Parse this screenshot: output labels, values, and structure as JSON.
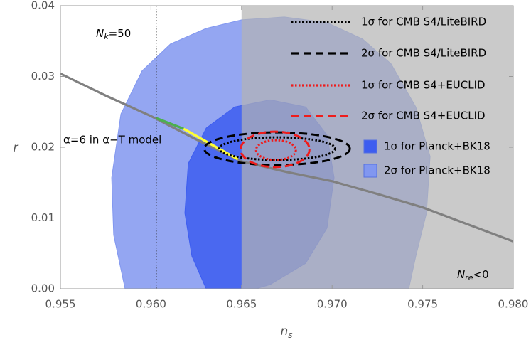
{
  "chart_data": {
    "type": "contour",
    "xlabel": "n",
    "xlabel_sub": "s",
    "ylabel": "r",
    "xlim": [
      0.955,
      0.98
    ],
    "ylim": [
      0,
      0.04
    ],
    "xticks": [
      0.955,
      {
        "value": 0.96,
        "label": "0.960"
      },
      0.965,
      {
        "value": 0.97,
        "label": "0.970"
      },
      0.975,
      {
        "value": 0.98,
        "label": "0.980"
      }
    ],
    "yticks": [
      {
        "value": 0,
        "label": "0.00"
      },
      0.01,
      0.02,
      0.03,
      0.04
    ],
    "shaded_region": {
      "xlim": [
        0.965,
        0.98
      ],
      "color": "#b4b4b4",
      "label": "N",
      "label_sub": "re",
      "label_tail": "<0"
    },
    "vline": {
      "x": 0.9603,
      "label": "N",
      "label_sub": "k",
      "label_tail": "=50"
    },
    "curve": {
      "color": "#808080",
      "x": [
        0.955,
        0.9575,
        0.96,
        0.9625,
        0.965,
        0.9675,
        0.97,
        0.9725,
        0.975,
        0.9775,
        0.98
      ],
      "y": [
        0.0304,
        0.0273,
        0.0244,
        0.0211,
        0.018,
        0.0165,
        0.0152,
        0.0134,
        0.0115,
        0.0091,
        0.0067
      ]
    },
    "segments": [
      {
        "color": "#4caf50",
        "x": [
          0.9603,
          0.9618
        ],
        "y": [
          0.0241,
          0.0226
        ]
      },
      {
        "color": "#ffff33",
        "x": [
          0.9618,
          0.9648
        ],
        "y": [
          0.0226,
          0.0183
        ]
      }
    ],
    "annotation": "α=6 in α−T model",
    "series": [
      {
        "name": "2σ for Planck+BK18",
        "color": "#8197f0",
        "style": "fill",
        "x": [
          0.95857,
          0.95794,
          0.95783,
          0.95834,
          0.95951,
          0.96108,
          0.96305,
          0.96501,
          0.96736,
          0.96972,
          0.97168,
          0.97325,
          0.97462,
          0.97541,
          0.97521,
          0.97462,
          0.97423
        ],
        "y": [
          0,
          0.0076,
          0.0157,
          0.0247,
          0.0308,
          0.0346,
          0.0368,
          0.038,
          0.0384,
          0.0376,
          0.0353,
          0.0318,
          0.0257,
          0.0187,
          0.0107,
          0.0046,
          0
        ]
      },
      {
        "name": "1σ for Planck+BK18",
        "color": "#3d5df0",
        "style": "fill",
        "x": [
          0.96305,
          0.96226,
          0.96187,
          0.96206,
          0.96305,
          0.96462,
          0.96658,
          0.96854,
          0.96972,
          0.97011,
          0.96972,
          0.96854,
          0.96658,
          0.96579
        ],
        "y": [
          0,
          0.0046,
          0.0107,
          0.0177,
          0.0227,
          0.0257,
          0.0267,
          0.0257,
          0.0217,
          0.0157,
          0.0086,
          0.0036,
          0.0006,
          0
        ]
      },
      {
        "name": "1σ for CMB S4/LiteBIRD",
        "color": "#000000",
        "style": "dotted",
        "center": [
          0.96697,
          0.0198
        ],
        "radii": [
          0.0032,
          0.0016
        ]
      },
      {
        "name": "2σ for CMB S4/LiteBIRD",
        "color": "#000000",
        "style": "dashed",
        "center": [
          0.96696,
          0.0198
        ],
        "radii": [
          0.00402,
          0.0023
        ]
      },
      {
        "name": "1σ for CMB S4+EUCLID",
        "color": "#ee1c1c",
        "style": "dotted",
        "center": [
          0.9669,
          0.0196
        ],
        "radii": [
          0.0011,
          0.0014
        ]
      },
      {
        "name": "2σ for CMB S4+EUCLID",
        "color": "#ee1c1c",
        "style": "dashed",
        "center": [
          0.96685,
          0.0197
        ],
        "radii": [
          0.0019,
          0.0025
        ]
      }
    ],
    "legend_order": [
      2,
      3,
      4,
      5,
      1,
      0
    ],
    "legend": "upper right"
  }
}
